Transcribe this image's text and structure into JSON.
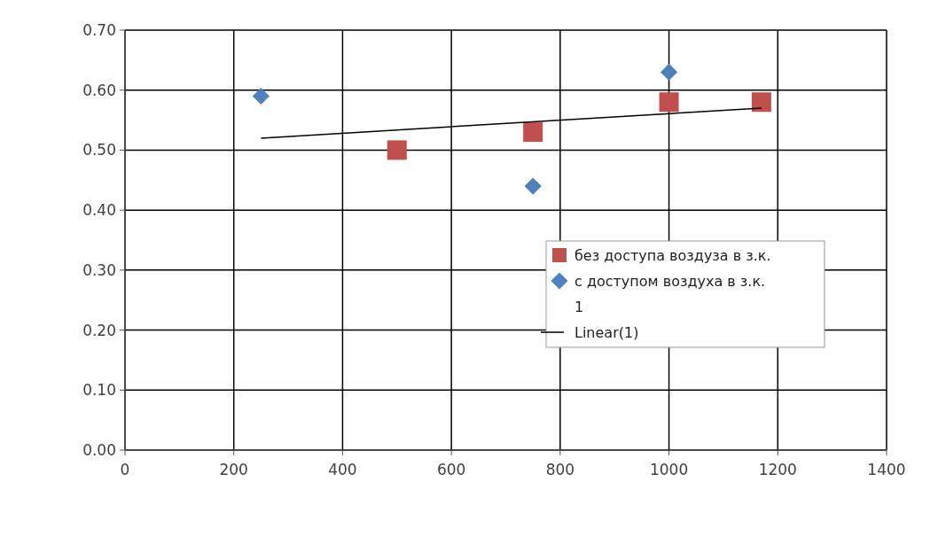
{
  "chart_data": {
    "type": "scatter",
    "xlim": [
      0,
      1400
    ],
    "xticks": [
      0,
      200,
      400,
      600,
      800,
      1000,
      1200,
      1400
    ],
    "ylim": [
      0,
      0.7
    ],
    "yticks": [
      {
        "value": 0,
        "label": "0.00"
      },
      {
        "value": 0.1,
        "label": "0.10"
      },
      {
        "value": 0.2,
        "label": "0.20"
      },
      {
        "value": 0.3,
        "label": "0.30"
      },
      {
        "value": 0.4,
        "label": "0.40"
      },
      {
        "value": 0.5,
        "label": "0.50"
      },
      {
        "value": 0.6,
        "label": "0.60"
      },
      {
        "value": 0.7,
        "label": "0.70"
      }
    ],
    "grid": true,
    "legend": "right",
    "series": [
      {
        "name": "без доступа воздуза в з.к.",
        "marker": "square",
        "color": "#c0504d",
        "x": [
          500,
          750,
          1000,
          1170
        ],
        "values": [
          0.5,
          0.53,
          0.58,
          0.58
        ]
      },
      {
        "name": "с доступом воздуха в з.к.",
        "marker": "diamond",
        "color": "#4f81bd",
        "x": [
          250,
          750,
          1000
        ],
        "values": [
          0.59,
          0.44,
          0.63
        ]
      },
      {
        "name": "1",
        "marker": "none"
      },
      {
        "name": "Linear(1)",
        "type": "line",
        "marker": "none",
        "line_style": "solid",
        "color": "#000000",
        "x": [
          250,
          1170
        ],
        "values": [
          0.52,
          0.57
        ]
      }
    ]
  }
}
